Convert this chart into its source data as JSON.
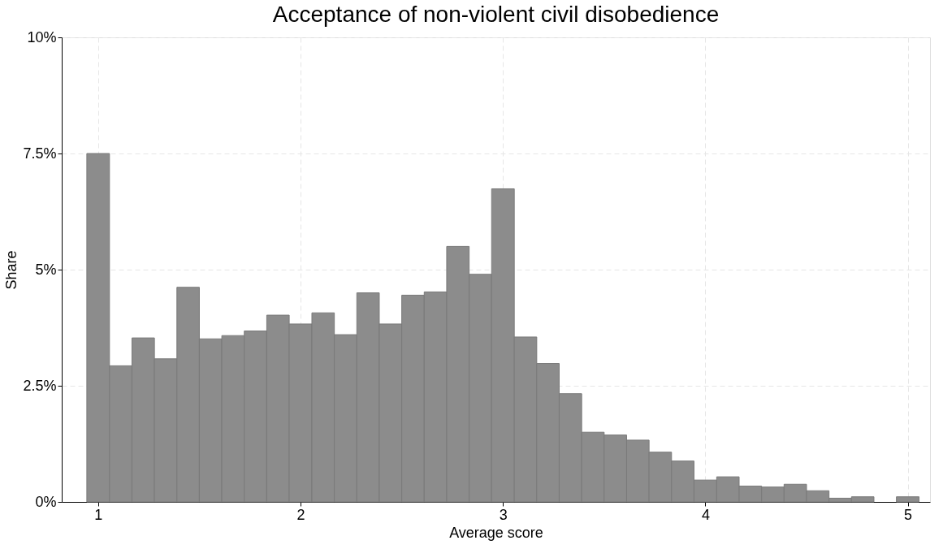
{
  "chart_data": {
    "type": "histogram",
    "title": "Acceptance of non-violent civil disobedience",
    "xlabel": "Average score",
    "ylabel": "Share",
    "bins": [
      0.944,
      1.056,
      1.167,
      1.278,
      1.389,
      1.5,
      1.611,
      1.722,
      1.833,
      1.944,
      2.056,
      2.167,
      2.278,
      2.389,
      2.5,
      2.611,
      2.722,
      2.833,
      2.944,
      3.056,
      3.167,
      3.278,
      3.389,
      3.5,
      3.611,
      3.722,
      3.833,
      3.944,
      4.056,
      4.167,
      4.278,
      4.389,
      4.5,
      4.611,
      4.722,
      4.833,
      4.944,
      5.056
    ],
    "values": [
      7.5,
      2.93,
      3.53,
      3.08,
      4.62,
      3.51,
      3.58,
      3.68,
      4.02,
      3.83,
      4.07,
      3.6,
      4.5,
      3.83,
      4.45,
      4.52,
      5.5,
      4.9,
      6.74,
      3.55,
      2.98,
      2.33,
      1.5,
      1.44,
      1.33,
      1.07,
      0.88,
      0.47,
      0.54,
      0.34,
      0.32,
      0.38,
      0.24,
      0.08,
      0.11,
      0,
      0.11
    ],
    "color": "#8c8c8c",
    "xlim": [
      0.82,
      5.11
    ],
    "xticks": [
      1,
      2,
      3,
      4,
      5
    ],
    "ylim": [
      0,
      10
    ],
    "yticks": [
      {
        "value": 0,
        "label": "0%"
      },
      {
        "value": 2.5,
        "label": "2.5%"
      },
      {
        "value": 5,
        "label": "5%"
      },
      {
        "value": 7.5,
        "label": "7.5%"
      },
      {
        "value": 10,
        "label": "10%"
      }
    ],
    "grid": true
  }
}
